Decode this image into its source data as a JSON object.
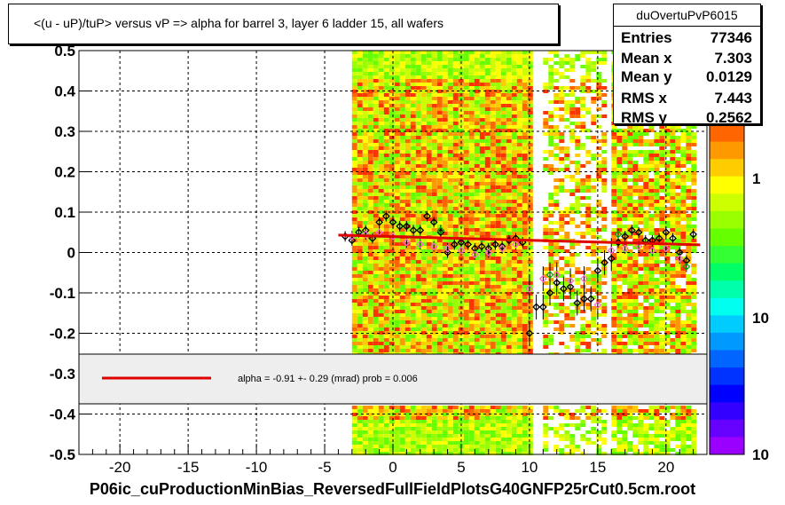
{
  "title": "<(u - uP)/tuP>  versus   vP => alpha for barrel 3, layer 6 ladder 15, all wafers",
  "stats": {
    "name": "duOvertuPvP6015",
    "rows": [
      {
        "label": "Entries",
        "value": "77346"
      },
      {
        "label": "Mean x",
        "value": "7.303"
      },
      {
        "label": "Mean y",
        "value": "0.0129"
      },
      {
        "label": "RMS x",
        "value": "7.443"
      },
      {
        "label": "RMS y",
        "value": "0.2562"
      }
    ]
  },
  "legend": {
    "text": "alpha =   -0.91 +-  0.29 (mrad) prob = 0.006",
    "line_color": "#e00000"
  },
  "footer": "P06ic_cuProductionMinBias_ReversedFullFieldPlotsG40GNFP25rCut0.5cm.root",
  "colors": {
    "fit_line": "#e00000",
    "marker_black": "#000000",
    "marker_pink": "#ff66cc",
    "marker_green": "#00aa00"
  },
  "chart_data": {
    "type": "scatter",
    "subtype": "2D histogram (colz) with profile points and linear fit",
    "xlim": [
      -23,
      23
    ],
    "ylim": [
      -0.5,
      0.5
    ],
    "x_ticks": [
      "-20",
      "-15",
      "-10",
      "-5",
      "0",
      "5",
      "10",
      "15",
      "20"
    ],
    "y_ticks": [
      "-0.5",
      "-0.4",
      "-0.3",
      "-0.2",
      "-0.1",
      "0",
      "0.1",
      "0.2",
      "0.3",
      "0.4",
      "0.5"
    ],
    "grid": true,
    "colorbar_labels": [
      "1",
      "10"
    ],
    "fit": {
      "x": [
        -4,
        22.5
      ],
      "y": [
        0.043,
        0.019
      ]
    },
    "occupancy_x_ranges": [
      [
        -3,
        10
      ],
      [
        11,
        15.5
      ],
      [
        16,
        22
      ]
    ],
    "series": [
      {
        "marker": "black",
        "points": [
          [
            -3.5,
            0.04
          ],
          [
            -3,
            0.03
          ],
          [
            -2.5,
            0.05
          ],
          [
            -2,
            0.055
          ],
          [
            -1.5,
            0.035
          ],
          [
            -1,
            0.075
          ],
          [
            -0.5,
            0.09
          ],
          [
            0,
            0.075
          ],
          [
            0.5,
            0.065
          ],
          [
            1,
            0.065
          ],
          [
            1.5,
            0.055
          ],
          [
            2,
            0.055
          ],
          [
            2.5,
            0.09
          ],
          [
            3,
            0.075
          ],
          [
            3.5,
            0.05
          ],
          [
            4,
            0.0
          ],
          [
            4.5,
            0.02
          ],
          [
            5,
            0.025
          ],
          [
            5.5,
            0.02
          ],
          [
            6,
            0.01
          ],
          [
            6.5,
            0.015
          ],
          [
            7,
            0.01
          ],
          [
            7.5,
            0.02
          ],
          [
            8,
            0.015
          ],
          [
            8.5,
            0.03
          ],
          [
            9,
            0.035
          ],
          [
            9.5,
            0.025
          ],
          [
            10,
            -0.2
          ],
          [
            10.5,
            -0.135
          ],
          [
            11,
            -0.135
          ],
          [
            11.5,
            -0.1
          ],
          [
            12,
            -0.075
          ],
          [
            12.5,
            -0.09
          ],
          [
            13,
            -0.085
          ],
          [
            13.5,
            -0.125
          ],
          [
            14,
            -0.115
          ],
          [
            14.5,
            -0.115
          ],
          [
            15,
            -0.045
          ],
          [
            15.5,
            -0.025
          ],
          [
            16,
            -0.015
          ],
          [
            16.5,
            0.025
          ],
          [
            17,
            0.04
          ],
          [
            17.5,
            0.055
          ],
          [
            18,
            0.05
          ],
          [
            18.5,
            0.03
          ],
          [
            19,
            0.03
          ],
          [
            19.5,
            0.035
          ],
          [
            20,
            0.05
          ],
          [
            20.5,
            0.035
          ],
          [
            21,
            0.0
          ],
          [
            21.5,
            -0.02
          ],
          [
            22,
            0.045
          ]
        ]
      },
      {
        "marker": "pink",
        "points": [
          [
            -3,
            0.04
          ],
          [
            -2,
            0.045
          ],
          [
            -1,
            0.05
          ],
          [
            0,
            0.04
          ],
          [
            1,
            0.025
          ],
          [
            2,
            0.02
          ],
          [
            3,
            0.015
          ],
          [
            4,
            0.01
          ],
          [
            5,
            0.005
          ],
          [
            6,
            -0.005
          ],
          [
            7,
            0.0
          ],
          [
            8,
            0.01
          ],
          [
            9,
            0.02
          ],
          [
            10,
            -0.09
          ],
          [
            11,
            -0.065
          ],
          [
            12,
            -0.055
          ],
          [
            13,
            -0.07
          ],
          [
            14,
            -0.065
          ],
          [
            15,
            -0.13
          ],
          [
            16,
            0.005
          ],
          [
            17,
            0.01
          ],
          [
            18,
            0.015
          ],
          [
            19,
            0.005
          ],
          [
            20,
            0.01
          ],
          [
            21,
            -0.015
          ]
        ]
      },
      {
        "marker": "green",
        "points": [
          [
            3.5,
            0.055
          ],
          [
            11.5,
            -0.055
          ],
          [
            16.5,
            0.045
          ],
          [
            21.5,
            -0.035
          ]
        ]
      }
    ]
  }
}
